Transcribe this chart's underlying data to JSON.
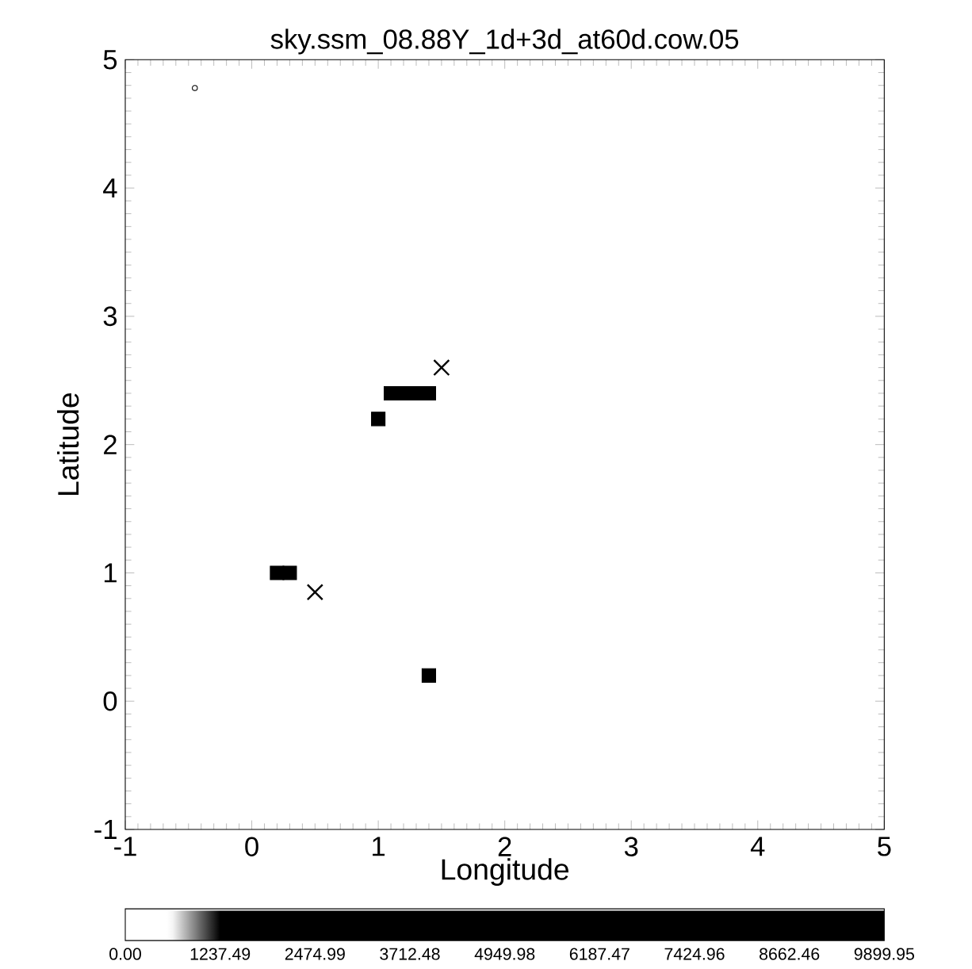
{
  "chart_data": {
    "type": "scatter",
    "title": "sky.ssm_08.88Y_1d+3d_at60d.cow.05",
    "xlabel": "Longitude",
    "ylabel": "Latitude",
    "xlim": [
      -1,
      5
    ],
    "ylim": [
      -1,
      5
    ],
    "xticks": [
      -1,
      0,
      1,
      2,
      3,
      4,
      5
    ],
    "yticks": [
      -1,
      0,
      1,
      2,
      3,
      4,
      5
    ],
    "series": [
      {
        "marker": "square",
        "color": "#000000",
        "x": [
          1.0,
          1.1,
          1.2,
          1.3,
          1.4,
          0.2,
          0.3,
          1.4
        ],
        "values": [
          2.2,
          2.4,
          2.4,
          2.4,
          2.4,
          1.0,
          1.0,
          0.2
        ]
      },
      {
        "marker": "cross",
        "color": "#000000",
        "x": [
          1.5,
          0.5
        ],
        "values": [
          2.6,
          0.85
        ]
      },
      {
        "marker": "circle",
        "color": "#000000",
        "x": [
          -0.45
        ],
        "values": [
          4.78
        ]
      }
    ],
    "clim": [
      0,
      9899.95
    ],
    "cticks": [
      {
        "value": 0,
        "label": "0.00"
      },
      1237.49,
      2474.99,
      3712.48,
      4949.98,
      6187.47,
      7424.96,
      8662.46,
      9899.95
    ]
  }
}
